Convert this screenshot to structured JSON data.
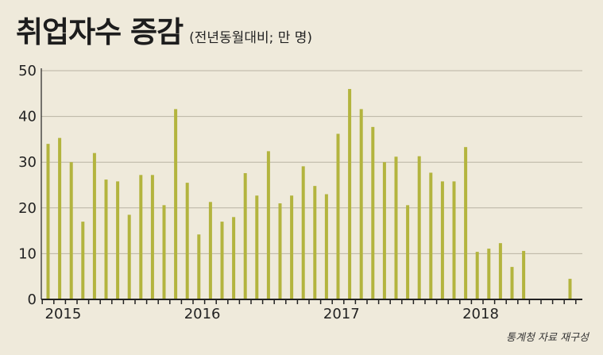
{
  "title": "취업자수 증감",
  "subtitle": "(전년동월대비; 만 명)",
  "source": "통계청 자료 재구성",
  "colors": {
    "bar": "#b3b43e",
    "axis": "#222222",
    "grid": "#b9b3a3",
    "background": "#efeadb"
  },
  "chart_data": {
    "type": "bar",
    "title": "취업자수 증감",
    "subtitle": "(전년동월대비; 만 명)",
    "xlabel": "",
    "ylabel": "",
    "ylim": [
      0,
      50
    ],
    "yticks": [
      0,
      10,
      20,
      30,
      40,
      50
    ],
    "grid": true,
    "year_labels": [
      "2015",
      "2016",
      "2017",
      "2018"
    ],
    "categories": [
      "2015-01",
      "2015-02",
      "2015-03",
      "2015-04",
      "2015-05",
      "2015-06",
      "2015-07",
      "2015-08",
      "2015-09",
      "2015-10",
      "2015-11",
      "2015-12",
      "2016-01",
      "2016-02",
      "2016-03",
      "2016-04",
      "2016-05",
      "2016-06",
      "2016-07",
      "2016-08",
      "2016-09",
      "2016-10",
      "2016-11",
      "2016-12",
      "2017-01",
      "2017-02",
      "2017-03",
      "2017-04",
      "2017-05",
      "2017-06",
      "2017-07",
      "2017-08",
      "2017-09",
      "2017-10",
      "2017-11",
      "2017-12",
      "2018-01",
      "2018-02",
      "2018-03",
      "2018-04",
      "2018-05",
      "2018-06",
      "2018-07",
      "2018-08",
      "2018-09",
      "2018-10",
      "2018-11",
      "2018-12"
    ],
    "values": [
      34,
      35.3,
      30,
      17,
      32,
      26.2,
      25.8,
      18.5,
      27.2,
      27.2,
      20.6,
      41.6,
      25.5,
      14.2,
      21.3,
      17,
      18,
      27.6,
      22.7,
      32.4,
      21,
      22.7,
      29.1,
      24.8,
      23,
      36.2,
      46,
      41.6,
      37.7,
      30,
      31.2,
      20.6,
      31.3,
      27.7,
      25.8,
      25.8,
      33.3,
      10.4,
      11.1,
      12.3,
      7.1,
      10.6,
      null,
      null,
      null,
      4.5,
      null,
      null
    ]
  }
}
